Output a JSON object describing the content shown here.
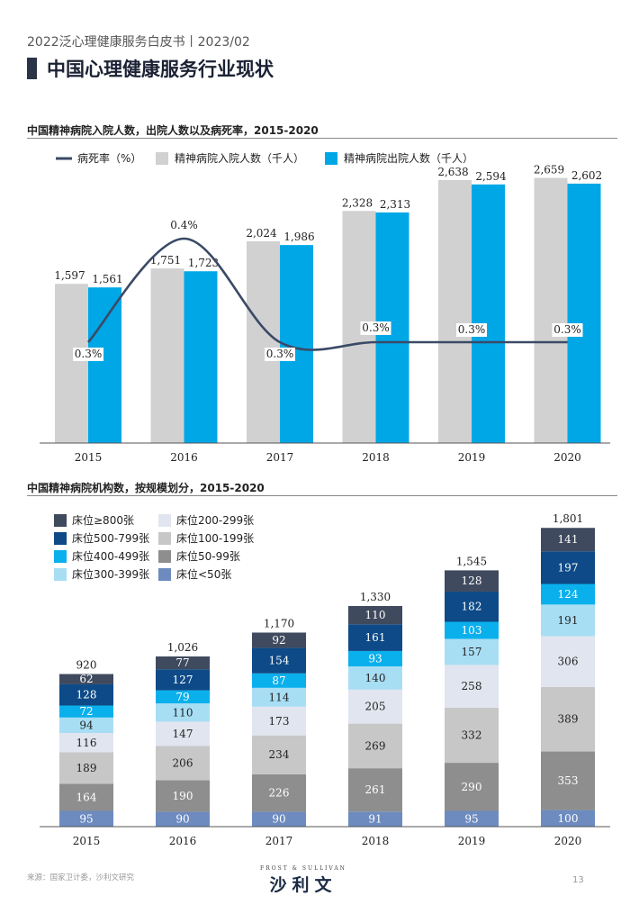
{
  "header": {
    "subtitle": "2022泛心理健康服务白皮书丨2023/02",
    "title": "中国心理健康服务行业现状"
  },
  "footer": {
    "source": "来源：国家卫计委，沙利文研究",
    "logo_tagline": "FROST & SULLIVAN",
    "logo_text": "沙利文",
    "page_number": "13"
  },
  "colors": {
    "admissions": "#d1d1d1",
    "discharges": "#00a7e6",
    "mortality_line": "#3a4a66"
  },
  "chart_data": [
    {
      "type": "bar",
      "title": "中国精神病院入院人数，出院人数以及病死率，2015-2020",
      "categories": [
        "2015",
        "2016",
        "2017",
        "2018",
        "2019",
        "2020"
      ],
      "series": [
        {
          "name": "精神病院入院人数（千人）",
          "values": [
            1597,
            1751,
            2024,
            2328,
            2638,
            2659
          ],
          "labels": [
            "1,597",
            "1,751",
            "2,024",
            "2,328",
            "2,638",
            "2,659"
          ],
          "color": "#d1d1d1"
        },
        {
          "name": "精神病院出院人数（千人）",
          "values": [
            1561,
            1723,
            1986,
            2313,
            2594,
            2602
          ],
          "labels": [
            "1,561",
            "1,723",
            "1,986",
            "2,313",
            "2,594",
            "2,602"
          ],
          "color": "#00a7e6"
        }
      ],
      "line_series": {
        "name": "病死率（%）",
        "values": [
          0.3,
          0.4,
          0.3,
          0.3,
          0.3,
          0.3
        ],
        "labels": [
          "0.3%",
          "0.4%",
          "0.3%",
          "0.3%",
          "0.3%",
          "0.3%"
        ],
        "color": "#3a4a66"
      },
      "ylim": [
        0,
        2800
      ],
      "legend_position": "top",
      "grid": false
    },
    {
      "type": "bar",
      "stacked": true,
      "title": "中国精神病院机构数，按规模划分，2015-2020",
      "categories": [
        "2015",
        "2016",
        "2017",
        "2018",
        "2019",
        "2020"
      ],
      "series": [
        {
          "name": "床位<50张",
          "values": [
            95,
            90,
            90,
            91,
            95,
            100
          ],
          "color": "#6d8bbf"
        },
        {
          "name": "床位50-99张",
          "values": [
            164,
            190,
            226,
            261,
            290,
            353
          ],
          "color": "#8e8e8e"
        },
        {
          "name": "床位100-199张",
          "values": [
            189,
            206,
            234,
            269,
            332,
            389
          ],
          "color": "#c7c7c7"
        },
        {
          "name": "床位200-299张",
          "values": [
            116,
            147,
            173,
            205,
            258,
            306
          ],
          "color": "#e1e5ef"
        },
        {
          "name": "床位300-399张",
          "values": [
            94,
            110,
            114,
            140,
            157,
            191
          ],
          "color": "#a8def4"
        },
        {
          "name": "床位400-499张",
          "values": [
            72,
            79,
            87,
            93,
            103,
            124
          ],
          "color": "#0ab0ec"
        },
        {
          "name": "床位500-799张",
          "values": [
            128,
            127,
            154,
            161,
            182,
            197
          ],
          "color": "#0d4a87"
        },
        {
          "name": "床位≥800张",
          "values": [
            62,
            77,
            92,
            110,
            128,
            141
          ],
          "color": "#3f4a5e"
        }
      ],
      "totals": [
        920,
        1026,
        1170,
        1330,
        1545,
        1801
      ],
      "total_labels": [
        "920",
        "1,026",
        "1,170",
        "1,330",
        "1,545",
        "1,801"
      ],
      "legend_order": [
        "床位≥800张",
        "床位200-299张",
        "床位500-799张",
        "床位100-199张",
        "床位400-499张",
        "床位50-99张",
        "床位300-399张",
        "床位<50张"
      ],
      "ylim": [
        0,
        1900
      ],
      "legend_position": "top-left",
      "grid": false
    }
  ]
}
